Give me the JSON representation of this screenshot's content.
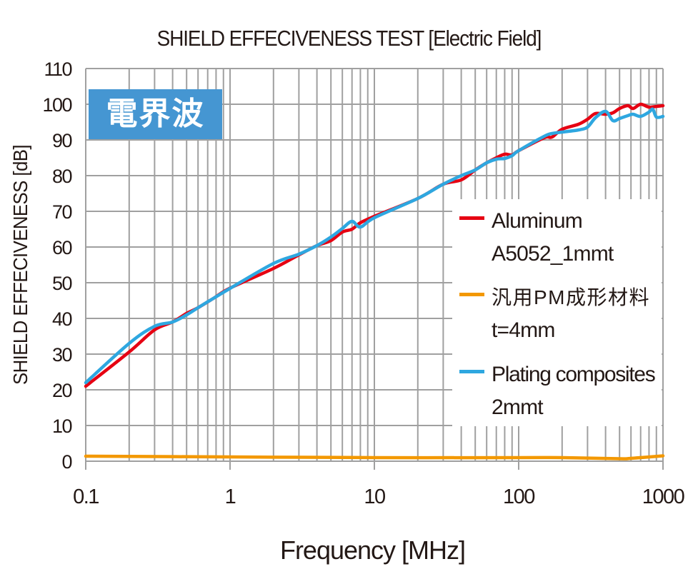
{
  "chart_data": {
    "type": "line",
    "title": "SHIELD EFFECIVENESS TEST [Electric Field]",
    "xlabel": "Frequency [MHz]",
    "ylabel": "SHIELD EFFECIVENESS [dB]",
    "xscale": "log",
    "xlim": [
      0.1,
      1000
    ],
    "ylim": [
      0,
      110
    ],
    "grid": true,
    "xticks": [
      0.1,
      1,
      10,
      100,
      1000
    ],
    "xtick_labels": [
      "0.1",
      "1",
      "10",
      "100",
      "1000"
    ],
    "yticks": [
      0,
      10,
      20,
      30,
      40,
      50,
      60,
      70,
      80,
      90,
      100,
      110
    ],
    "ytick_labels": [
      "0",
      "10",
      "20",
      "30",
      "40",
      "50",
      "60",
      "70",
      "80",
      "90",
      "100",
      "110"
    ],
    "badge": "電界波",
    "legend_position": "right",
    "series": [
      {
        "name": "Aluminum A5052_1mmt",
        "label_lines": [
          "Aluminum",
          "A5052_1mmt"
        ],
        "color": "#e60012",
        "x": [
          0.1,
          0.2,
          0.3,
          0.4,
          0.5,
          0.6,
          0.78,
          1,
          2,
          3,
          4,
          5,
          6,
          7,
          8,
          10,
          20,
          30,
          40,
          50,
          60,
          70,
          80,
          90,
          100,
          150,
          170,
          200,
          260,
          300,
          340,
          400,
          450,
          500,
          570,
          620,
          700,
          800,
          900,
          1000
        ],
        "y": [
          21,
          30.6,
          36.8,
          39,
          41.4,
          43,
          45.8,
          48.5,
          54,
          57.8,
          60.4,
          61.8,
          64.2,
          65,
          66.8,
          68.6,
          73.6,
          77.6,
          78.8,
          81.6,
          83.6,
          85,
          86,
          85.8,
          87,
          90.6,
          90.8,
          93,
          94.4,
          95.8,
          97.4,
          97.2,
          97.6,
          98.8,
          99.6,
          98.8,
          100,
          99.2,
          99.4,
          99.6
        ]
      },
      {
        "name": "汎用PM成形材料 t=4mm",
        "label_lines": [
          "汎用PM成形材料",
          "t=4mm"
        ],
        "color": "#f39800",
        "x": [
          0.1,
          1,
          10,
          100,
          200,
          500,
          600,
          1000
        ],
        "y": [
          1.4,
          1.2,
          1.0,
          1.0,
          1.0,
          0.7,
          0.8,
          1.5
        ]
      },
      {
        "name": "Plating composites 2mmt",
        "label_lines": [
          "Plating composites",
          "2mmt"
        ],
        "color": "#2ea7e0",
        "x": [
          0.1,
          0.2,
          0.3,
          0.4,
          0.5,
          0.6,
          0.78,
          1,
          2,
          3,
          4,
          5,
          6,
          7,
          8,
          10,
          20,
          30,
          40,
          50,
          60,
          70,
          80,
          90,
          100,
          150,
          170,
          200,
          260,
          300,
          340,
          400,
          450,
          500,
          570,
          620,
          700,
          800,
          850,
          900,
          1000
        ],
        "y": [
          22,
          33,
          37.8,
          39,
          41,
          43,
          45.8,
          48.4,
          55.4,
          58,
          60.4,
          62.8,
          65.2,
          67.2,
          65.6,
          68.2,
          73.6,
          77.6,
          80,
          81.6,
          83.6,
          84.6,
          84.8,
          85.6,
          87,
          91,
          91.8,
          92.2,
          92.8,
          93.6,
          96.2,
          98,
          95.4,
          96,
          96.8,
          97.2,
          96.6,
          97.8,
          98.6,
          96.4,
          96.6
        ]
      }
    ]
  }
}
